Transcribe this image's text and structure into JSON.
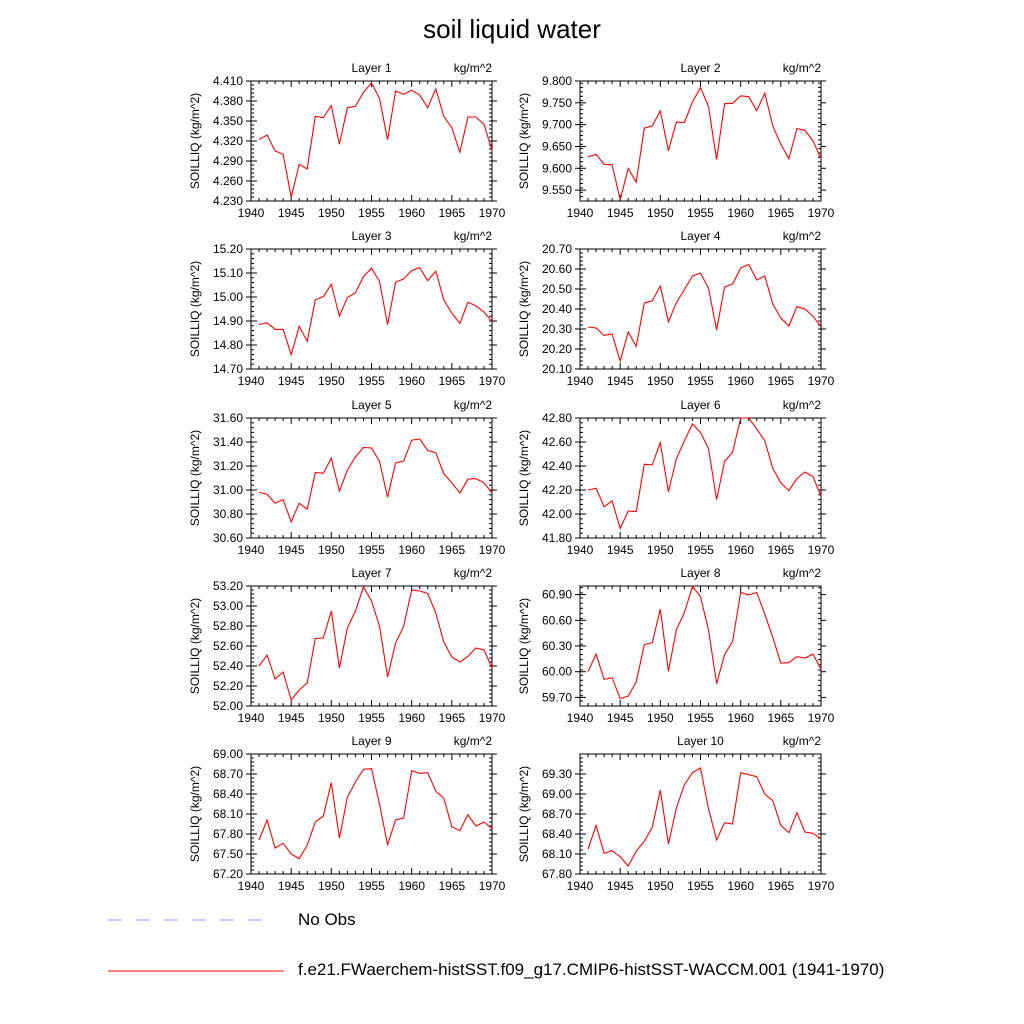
{
  "title": "soil liquid water",
  "chart_data": [
    {
      "type": "line",
      "title": "Layer 1",
      "units": "kg/m^2",
      "ylabel": "SOILLIQ  (kg/m^2)",
      "xlim": [
        1940,
        1970
      ],
      "ylim": [
        4.23,
        4.41
      ],
      "xticks": [
        1940,
        1945,
        1950,
        1955,
        1960,
        1965,
        1970
      ],
      "yticks": [
        "4.230",
        "4.260",
        "4.290",
        "4.320",
        "4.350",
        "4.380",
        "4.410"
      ],
      "series": [
        {
          "values": [
            4.322,
            4.329,
            4.305,
            4.3,
            4.236,
            4.285,
            4.278,
            4.357,
            4.355,
            4.373,
            4.315,
            4.37,
            4.372,
            4.393,
            4.407,
            4.384,
            4.322,
            4.395,
            4.39,
            4.396,
            4.389,
            4.37,
            4.398,
            4.357,
            4.34,
            4.303,
            4.356,
            4.356,
            4.345,
            4.306
          ]
        }
      ]
    },
    {
      "type": "line",
      "title": "Layer 2",
      "units": "kg/m^2",
      "ylabel": "SOILLIQ  (kg/m^2)",
      "xlim": [
        1940,
        1970
      ],
      "ylim": [
        9.525,
        9.8
      ],
      "xticks": [
        1940,
        1945,
        1950,
        1955,
        1960,
        1965,
        1970
      ],
      "yticks": [
        "9.550",
        "9.600",
        "9.650",
        "9.700",
        "9.750",
        "9.800"
      ],
      "series": [
        {
          "values": [
            9.626,
            9.632,
            9.609,
            9.608,
            9.528,
            9.6,
            9.568,
            9.692,
            9.697,
            9.732,
            9.64,
            9.706,
            9.705,
            9.752,
            9.785,
            9.741,
            9.62,
            9.748,
            9.749,
            9.766,
            9.764,
            9.732,
            9.772,
            9.697,
            9.655,
            9.622,
            9.691,
            9.687,
            9.663,
            9.622
          ]
        }
      ]
    },
    {
      "type": "line",
      "title": "Layer 3",
      "units": "kg/m^2",
      "ylabel": "SOILLIQ  (kg/m^2)",
      "xlim": [
        1940,
        1970
      ],
      "ylim": [
        14.7,
        15.2
      ],
      "xticks": [
        1940,
        1945,
        1950,
        1955,
        1960,
        1965,
        1970
      ],
      "yticks": [
        "14.70",
        "14.80",
        "14.90",
        "15.00",
        "15.10",
        "15.20"
      ],
      "series": [
        {
          "values": [
            14.885,
            14.893,
            14.865,
            14.865,
            14.76,
            14.878,
            14.815,
            14.988,
            15.002,
            15.053,
            14.92,
            14.998,
            15.017,
            15.085,
            15.12,
            15.065,
            14.885,
            15.062,
            15.075,
            15.11,
            15.122,
            15.068,
            15.108,
            14.988,
            14.933,
            14.89,
            14.978,
            14.963,
            14.937,
            14.898
          ]
        }
      ]
    },
    {
      "type": "line",
      "title": "Layer 4",
      "units": "kg/m^2",
      "ylabel": "SOILLIQ  (kg/m^2)",
      "xlim": [
        1940,
        1970
      ],
      "ylim": [
        20.1,
        20.7
      ],
      "xticks": [
        1940,
        1945,
        1950,
        1955,
        1960,
        1965,
        1970
      ],
      "yticks": [
        "20.10",
        "20.20",
        "20.30",
        "20.40",
        "20.50",
        "20.60",
        "20.70"
      ],
      "series": [
        {
          "values": [
            20.31,
            20.305,
            20.268,
            20.275,
            20.14,
            20.285,
            20.213,
            20.43,
            20.441,
            20.515,
            20.336,
            20.432,
            20.497,
            20.565,
            20.58,
            20.504,
            20.295,
            20.51,
            20.525,
            20.605,
            20.623,
            20.545,
            20.565,
            20.425,
            20.355,
            20.315,
            20.412,
            20.4,
            20.364,
            20.31
          ]
        }
      ]
    },
    {
      "type": "line",
      "title": "Layer 5",
      "units": "kg/m^2",
      "ylabel": "SOILLIQ  (kg/m^2)",
      "xlim": [
        1940,
        1970
      ],
      "ylim": [
        30.6,
        31.6
      ],
      "xticks": [
        1940,
        1945,
        1950,
        1955,
        1960,
        1965,
        1970
      ],
      "yticks": [
        "30.60",
        "30.80",
        "31.00",
        "31.20",
        "31.40",
        "31.60"
      ],
      "series": [
        {
          "values": [
            30.98,
            30.965,
            30.89,
            30.92,
            30.735,
            30.89,
            30.84,
            31.145,
            31.14,
            31.265,
            30.99,
            31.165,
            31.275,
            31.355,
            31.35,
            31.24,
            30.94,
            31.225,
            31.24,
            31.415,
            31.425,
            31.33,
            31.31,
            31.135,
            31.06,
            30.975,
            31.09,
            31.095,
            31.06,
            30.975
          ]
        }
      ]
    },
    {
      "type": "line",
      "title": "Layer 6",
      "units": "kg/m^2",
      "ylabel": "SOILLIQ  (kg/m^2)",
      "xlim": [
        1940,
        1970
      ],
      "ylim": [
        41.8,
        42.8
      ],
      "xticks": [
        1940,
        1945,
        1950,
        1955,
        1960,
        1965,
        1970
      ],
      "yticks": [
        "41.80",
        "42.00",
        "42.20",
        "42.40",
        "42.60",
        "42.80"
      ],
      "series": [
        {
          "values": [
            42.2,
            42.215,
            42.06,
            42.11,
            41.88,
            42.025,
            42.02,
            42.415,
            42.41,
            42.595,
            42.185,
            42.46,
            42.61,
            42.75,
            42.68,
            42.545,
            42.12,
            42.44,
            42.515,
            42.8,
            42.8,
            42.71,
            42.61,
            42.38,
            42.26,
            42.195,
            42.295,
            42.35,
            42.31,
            42.15
          ]
        }
      ]
    },
    {
      "type": "line",
      "title": "Layer 7",
      "units": "kg/m^2",
      "ylabel": "SOILLIQ  (kg/m^2)",
      "xlim": [
        1940,
        1970
      ],
      "ylim": [
        52.0,
        53.2
      ],
      "xticks": [
        1940,
        1945,
        1950,
        1955,
        1960,
        1965,
        1970
      ],
      "yticks": [
        "52.00",
        "52.20",
        "52.40",
        "52.60",
        "52.80",
        "53.00",
        "53.20"
      ],
      "series": [
        {
          "values": [
            52.4,
            52.51,
            52.27,
            52.34,
            52.06,
            52.16,
            52.23,
            52.675,
            52.68,
            52.95,
            52.38,
            52.78,
            52.95,
            53.19,
            53.05,
            52.8,
            52.29,
            52.63,
            52.795,
            53.16,
            53.15,
            53.125,
            52.93,
            52.64,
            52.49,
            52.44,
            52.495,
            52.58,
            52.56,
            52.38
          ]
        }
      ]
    },
    {
      "type": "line",
      "title": "Layer 8",
      "units": "kg/m^2",
      "ylabel": "SOILLIQ  (kg/m^2)",
      "xlim": [
        1940,
        1970
      ],
      "ylim": [
        59.6,
        61.0
      ],
      "xticks": [
        1940,
        1945,
        1950,
        1955,
        1960,
        1965,
        1970
      ],
      "yticks": [
        "59.70",
        "60.00",
        "60.30",
        "60.60",
        "60.90"
      ],
      "series": [
        {
          "values": [
            60.0,
            60.205,
            59.91,
            59.93,
            59.685,
            59.715,
            59.88,
            60.315,
            60.34,
            60.73,
            60.005,
            60.49,
            60.69,
            60.995,
            60.875,
            60.49,
            59.86,
            60.2,
            60.355,
            60.925,
            60.895,
            60.925,
            60.67,
            60.4,
            60.1,
            60.105,
            60.175,
            60.16,
            60.205,
            60.03
          ]
        }
      ]
    },
    {
      "type": "line",
      "title": "Layer 9",
      "units": "kg/m^2",
      "ylabel": "SOILLIQ  (kg/m^2)",
      "xlim": [
        1940,
        1970
      ],
      "ylim": [
        67.2,
        69.0
      ],
      "xticks": [
        1940,
        1945,
        1950,
        1955,
        1960,
        1965,
        1970
      ],
      "yticks": [
        "67.20",
        "67.50",
        "67.80",
        "68.10",
        "68.40",
        "68.70",
        "69.00"
      ],
      "series": [
        {
          "values": [
            67.71,
            68.01,
            67.59,
            67.66,
            67.5,
            67.43,
            67.63,
            67.98,
            68.07,
            68.57,
            67.74,
            68.35,
            68.58,
            68.77,
            68.78,
            68.25,
            67.64,
            68.01,
            68.04,
            68.75,
            68.71,
            68.72,
            68.44,
            68.34,
            67.91,
            67.85,
            68.09,
            67.92,
            67.98,
            67.88
          ]
        }
      ]
    },
    {
      "type": "line",
      "title": "Layer 10",
      "units": "kg/m^2",
      "ylabel": "SOILLIQ  (kg/m^2)",
      "xlim": [
        1940,
        1970
      ],
      "ylim": [
        67.8,
        69.6
      ],
      "xticks": [
        1940,
        1945,
        1950,
        1955,
        1960,
        1965,
        1970
      ],
      "yticks": [
        "67.80",
        "68.10",
        "68.40",
        "68.70",
        "69.00",
        "69.30"
      ],
      "series": [
        {
          "values": [
            68.17,
            68.53,
            68.11,
            68.15,
            68.06,
            67.92,
            68.14,
            68.29,
            68.5,
            69.06,
            68.25,
            68.79,
            69.14,
            69.32,
            69.39,
            68.78,
            68.31,
            68.57,
            68.55,
            69.32,
            69.29,
            69.26,
            69.0,
            68.9,
            68.53,
            68.42,
            68.72,
            68.43,
            68.41,
            68.33
          ]
        }
      ]
    }
  ],
  "legend": [
    {
      "label": "No Obs",
      "color": "#9999ff",
      "dash": true
    },
    {
      "label": "f.e21.FWaerchem-histSST.f09_g17.CMIP6-histSST-WACCM.001 (1941-1970)",
      "color": "#ff0000",
      "dash": false
    }
  ],
  "colors": {
    "series": "#ff0000",
    "obs": "#9999ff",
    "axis": "#000000"
  }
}
